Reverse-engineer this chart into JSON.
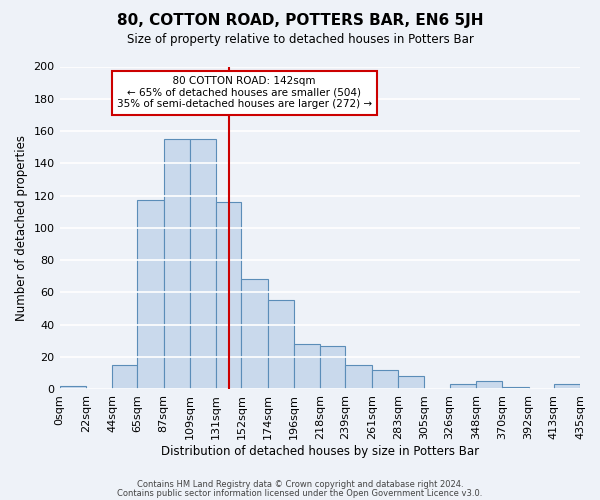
{
  "title": "80, COTTON ROAD, POTTERS BAR, EN6 5JH",
  "subtitle": "Size of property relative to detached houses in Potters Bar",
  "xlabel": "Distribution of detached houses by size in Potters Bar",
  "ylabel": "Number of detached properties",
  "bar_labels": [
    "0sqm",
    "22sqm",
    "44sqm",
    "65sqm",
    "87sqm",
    "109sqm",
    "131sqm",
    "152sqm",
    "174sqm",
    "196sqm",
    "218sqm",
    "239sqm",
    "261sqm",
    "283sqm",
    "305sqm",
    "326sqm",
    "348sqm",
    "370sqm",
    "392sqm",
    "413sqm",
    "435sqm"
  ],
  "bar_heights": [
    2,
    0,
    15,
    117,
    155,
    155,
    116,
    68,
    55,
    28,
    27,
    15,
    12,
    8,
    0,
    3,
    5,
    1,
    0,
    3
  ],
  "bar_color": "#c9d9ec",
  "bar_edge_color": "#5b8db8",
  "reference_line_x": 142,
  "bin_edges": [
    0,
    22,
    44,
    65,
    87,
    109,
    131,
    152,
    174,
    196,
    218,
    239,
    261,
    283,
    305,
    326,
    348,
    370,
    392,
    413,
    435
  ],
  "ylim": [
    0,
    200
  ],
  "yticks": [
    0,
    20,
    40,
    60,
    80,
    100,
    120,
    140,
    160,
    180,
    200
  ],
  "annotation_title": "80 COTTON ROAD: 142sqm",
  "annotation_line1": "← 65% of detached houses are smaller (504)",
  "annotation_line2": "35% of semi-detached houses are larger (272) →",
  "footer_line1": "Contains HM Land Registry data © Crown copyright and database right 2024.",
  "footer_line2": "Contains public sector information licensed under the Open Government Licence v3.0.",
  "bg_color": "#eef2f8",
  "plot_bg_color": "#eef2f8",
  "grid_color": "#ffffff",
  "ref_line_color": "#cc0000",
  "annotation_box_edge_color": "#cc0000"
}
